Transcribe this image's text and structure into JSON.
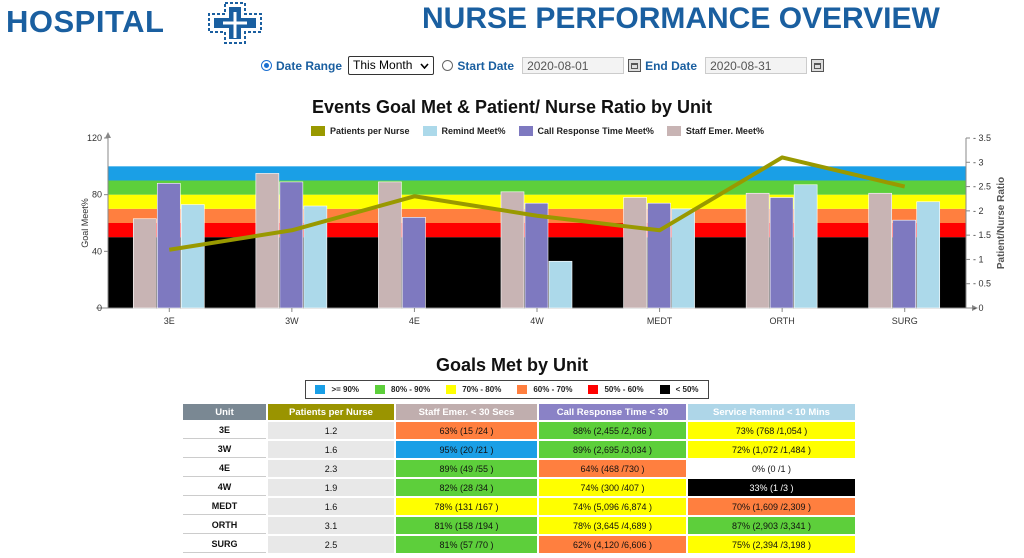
{
  "header": {
    "logo_text": "HOSPITAL",
    "logo_icon": "hospital-cross-icon",
    "title": "NURSE PERFORMANCE OVERVIEW"
  },
  "filters": {
    "date_range_label": "Date Range",
    "date_range_value": "This Month",
    "start_label": "Start Date",
    "start_value": "2020-08-01",
    "end_label": "End Date",
    "end_value": "2020-08-31"
  },
  "colors": {
    "blue": "#1a9fe6",
    "green": "#5dcf3b",
    "yellow": "#ffff00",
    "orange": "#ff7f3f",
    "red": "#ff0000",
    "black": "#000000",
    "ppn": "#999900",
    "remind": "#acd9ea",
    "response": "#7e79c0",
    "staff": "#c8b4b4",
    "header_unit": "#7a8893",
    "header_ppn": "#9a9400",
    "header_staff": "#c0aeae",
    "header_response": "#8a82c6",
    "header_remind": "#aed6e8"
  },
  "chart_data": {
    "type": "bar",
    "title": "Events Goal Met & Patient/ Nurse Ratio by Unit",
    "ylabel": "Goal Meet%",
    "y2label": "Patient/Nurse Ratio",
    "ylim": [
      0,
      120
    ],
    "y2lim": [
      0,
      3.5
    ],
    "yticks": [
      "0",
      "40",
      "80",
      "120"
    ],
    "y2ticks": [
      "0",
      "0.5",
      "1",
      "1.5",
      "2",
      "2.5",
      "3",
      "3.5"
    ],
    "categories": [
      "3E",
      "3W",
      "4E",
      "4W",
      "MEDT",
      "ORTH",
      "SURG"
    ],
    "legend": [
      "Patients per Nurse",
      "Remind Meet%",
      "Call Response Time Meet%",
      "Staff Emer. Meet%"
    ],
    "series": [
      {
        "name": "Staff Emer. Meet%",
        "values": [
          63,
          95,
          89,
          82,
          78,
          81,
          81
        ]
      },
      {
        "name": "Call Response Time Meet%",
        "values": [
          88,
          89,
          64,
          74,
          74,
          78,
          62
        ]
      },
      {
        "name": "Remind Meet%",
        "values": [
          73,
          72,
          0,
          33,
          70,
          87,
          75
        ]
      },
      {
        "name": "Patients per Nurse",
        "values": [
          1.2,
          1.6,
          2.3,
          1.9,
          1.6,
          3.1,
          2.5
        ]
      }
    ],
    "bands": [
      {
        "from": 0,
        "to": 50,
        "color": "black"
      },
      {
        "from": 50,
        "to": 60,
        "color": "red"
      },
      {
        "from": 60,
        "to": 70,
        "color": "orange"
      },
      {
        "from": 70,
        "to": 80,
        "color": "yellow"
      },
      {
        "from": 80,
        "to": 90,
        "color": "green"
      },
      {
        "from": 90,
        "to": 100,
        "color": "blue"
      }
    ]
  },
  "goals": {
    "title": "Goals Met by Unit",
    "legend": [
      {
        "label": ">= 90%",
        "color": "blue"
      },
      {
        "label": "80% - 90%",
        "color": "green"
      },
      {
        "label": "70% - 80%",
        "color": "yellow"
      },
      {
        "label": "60% - 70%",
        "color": "orange"
      },
      {
        "label": "50% - 60%",
        "color": "red"
      },
      {
        "label": "< 50%",
        "color": "black"
      }
    ],
    "headers": {
      "unit": "Unit",
      "ppn": "Patients per Nurse",
      "staff": "Staff Emer. < 30 Secs",
      "response": "Call Response Time < 30",
      "remind": "Service Remind < 10 Mins"
    },
    "rows": [
      {
        "unit": "3E",
        "ppn": "1.2",
        "staff": "63% (15 /24 )",
        "staff_c": "orange",
        "response": "88% (2,455 /2,786 )",
        "response_c": "green",
        "remind": "73% (768 /1,054 )",
        "remind_c": "yellow"
      },
      {
        "unit": "3W",
        "ppn": "1.6",
        "staff": "95% (20 /21 )",
        "staff_c": "blue",
        "response": "89% (2,695 /3,034 )",
        "response_c": "green",
        "remind": "72% (1,072 /1,484 )",
        "remind_c": "yellow"
      },
      {
        "unit": "4E",
        "ppn": "2.3",
        "staff": "89% (49 /55 )",
        "staff_c": "green",
        "response": "64% (468 /730 )",
        "response_c": "orange",
        "remind": "0% (0 /1 )",
        "remind_c": "white"
      },
      {
        "unit": "4W",
        "ppn": "1.9",
        "staff": "82% (28 /34 )",
        "staff_c": "green",
        "response": "74% (300 /407 )",
        "response_c": "yellow",
        "remind": "33% (1 /3 )",
        "remind_c": "black"
      },
      {
        "unit": "MEDT",
        "ppn": "1.6",
        "staff": "78% (131 /167 )",
        "staff_c": "yellow",
        "response": "74% (5,096 /6,874 )",
        "response_c": "yellow",
        "remind": "70% (1,609 /2,309 )",
        "remind_c": "orange"
      },
      {
        "unit": "ORTH",
        "ppn": "3.1",
        "staff": "81% (158 /194 )",
        "staff_c": "green",
        "response": "78% (3,645 /4,689 )",
        "response_c": "yellow",
        "remind": "87% (2,903 /3,341 )",
        "remind_c": "green"
      },
      {
        "unit": "SURG",
        "ppn": "2.5",
        "staff": "81% (57 /70 )",
        "staff_c": "green",
        "response": "62% (4,120 /6,606 )",
        "response_c": "orange",
        "remind": "75% (2,394 /3,198 )",
        "remind_c": "yellow"
      }
    ]
  }
}
